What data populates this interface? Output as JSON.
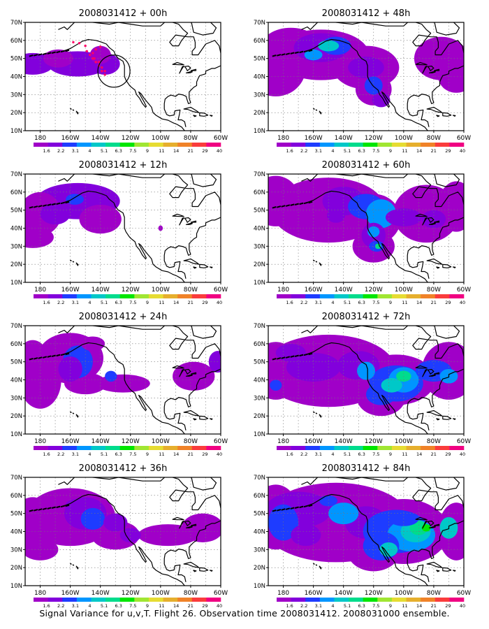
{
  "figure": {
    "caption": "Signal Variance for u,v,T. Flight 26. Observation time 2008031412. 2008031000 ensemble.",
    "panels": [
      {
        "title": "2008031412 + 00h",
        "lead_hours": 0
      },
      {
        "title": "2008031412 + 48h",
        "lead_hours": 48
      },
      {
        "title": "2008031412 + 12h",
        "lead_hours": 12
      },
      {
        "title": "2008031412 + 60h",
        "lead_hours": 60
      },
      {
        "title": "2008031412 + 24h",
        "lead_hours": 24
      },
      {
        "title": "2008031412 + 72h",
        "lead_hours": 72
      },
      {
        "title": "2008031412 + 36h",
        "lead_hours": 36
      },
      {
        "title": "2008031412 + 84h",
        "lead_hours": 84
      }
    ],
    "lat_labels": [
      "70N",
      "60N",
      "50N",
      "40N",
      "30N",
      "20N",
      "10N"
    ],
    "lon_labels": [
      "180",
      "160W",
      "140W",
      "120W",
      "100W",
      "80W",
      "60W"
    ],
    "colorbar": {
      "labels": [
        "1.6",
        "2.2",
        "3.1",
        "4",
        "5.1",
        "6.3",
        "7.5",
        "9",
        "11",
        "14",
        "21",
        "29",
        "40"
      ],
      "colors": [
        "#a000c8",
        "#8200dc",
        "#1e3cff",
        "#0096ff",
        "#00c8c8",
        "#00dc8c",
        "#00e600",
        "#a0e632",
        "#e6dc32",
        "#e6af2d",
        "#f08228",
        "#fa3c3c",
        "#f00082"
      ]
    },
    "map": {
      "projection": "lat-lon",
      "lon_range": [
        -190,
        -60
      ],
      "lat_range": [
        10,
        70
      ],
      "grid": "dotted",
      "coastlines": true
    },
    "flight_track": {
      "color": "#ff0066",
      "marker": "dotted",
      "shown_in_panel": "2008031412 + 00h"
    },
    "range_circle": {
      "shown_in_panel": "2008031412 + 00h"
    }
  }
}
